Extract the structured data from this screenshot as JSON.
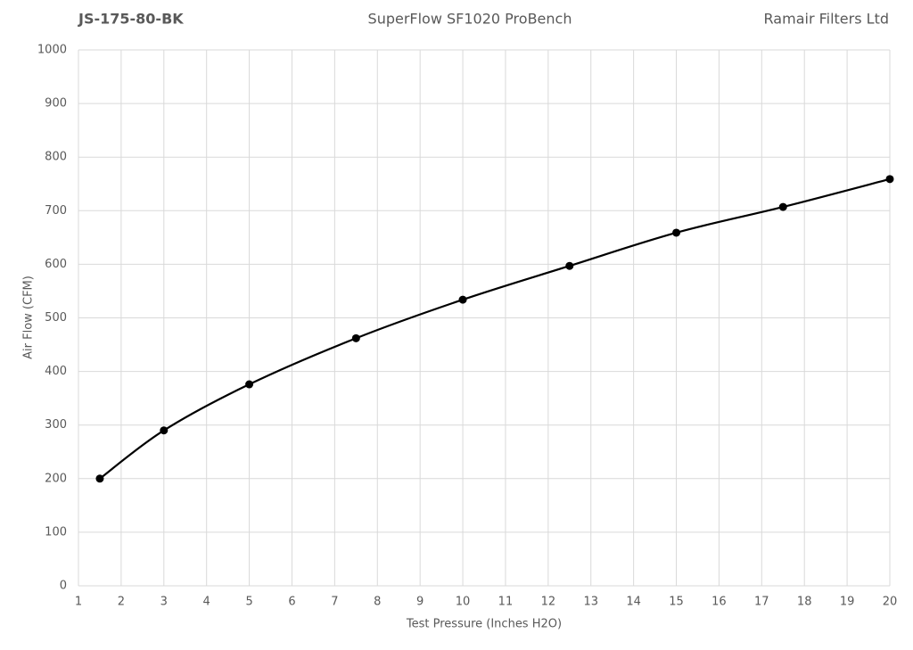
{
  "chart_data": {
    "type": "line",
    "title_left": "JS-175-80-BK",
    "title": "SuperFlow SF1020 ProBench",
    "title_right": "Ramair Filters Ltd",
    "x_label": "Test Pressure (Inches H2O)",
    "y_label": "Air Flow (CFM)",
    "x": [
      1.5,
      3,
      5,
      7.5,
      10,
      12.5,
      15,
      17.5,
      20
    ],
    "series": [
      {
        "color": "#000000",
        "values": [
          200,
          290,
          376,
          462,
          534,
          597,
          659,
          707,
          759
        ]
      }
    ],
    "markers": true,
    "smooth": true,
    "xlim": [
      1,
      20
    ],
    "xticks": [
      1,
      2,
      3,
      4,
      5,
      6,
      7,
      8,
      9,
      10,
      11,
      12,
      13,
      14,
      15,
      16,
      17,
      18,
      19,
      20
    ],
    "ylim": [
      0,
      1000
    ],
    "yticks": [
      0,
      100,
      200,
      300,
      400,
      500,
      600,
      700,
      800,
      900,
      1000
    ],
    "grid": true
  }
}
